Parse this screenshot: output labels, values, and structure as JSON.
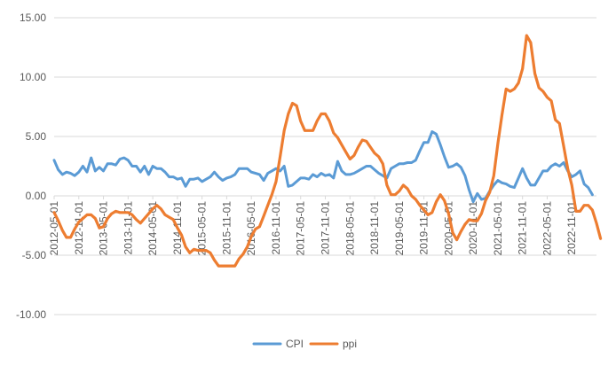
{
  "chart_data": {
    "type": "line",
    "title": "",
    "xlabel": "",
    "ylabel": "",
    "ylim": [
      -10,
      15
    ],
    "y_ticks": [
      "15.00",
      "10.00",
      "5.00",
      "0.00",
      "-5.00",
      "-10.00"
    ],
    "grid": "horizontal",
    "legend_position": "bottom",
    "x_tick_labels": [
      "2012-05-01",
      "2012-11-01",
      "2013-05-01",
      "2013-11-01",
      "2014-05-01",
      "2014-11-01",
      "2015-05-01",
      "2015-11-01",
      "2016-05-01",
      "2016-11-01",
      "2017-05-01",
      "2017-11-01",
      "2018-05-01",
      "2018-11-01",
      "2019-05-01",
      "2019-11-01",
      "2020-05-01",
      "2020-11-01",
      "2021-05-01",
      "2021-11-01",
      "2022-05-01",
      "2022-11-01"
    ],
    "x_start": "2012-05",
    "x_end": "2023-05",
    "series": [
      {
        "name": "CPI",
        "color": "#5b9bd5",
        "values": [
          3.0,
          2.2,
          1.8,
          2.0,
          1.9,
          1.7,
          2.0,
          2.5,
          2.0,
          3.2,
          2.1,
          2.4,
          2.1,
          2.7,
          2.7,
          2.6,
          3.1,
          3.2,
          3.0,
          2.5,
          2.5,
          2.0,
          2.5,
          1.8,
          2.5,
          2.3,
          2.3,
          2.0,
          1.6,
          1.6,
          1.4,
          1.5,
          0.8,
          1.4,
          1.4,
          1.5,
          1.2,
          1.4,
          1.6,
          2.0,
          1.6,
          1.3,
          1.5,
          1.6,
          1.8,
          2.3,
          2.3,
          2.3,
          2.0,
          1.9,
          1.8,
          1.3,
          1.9,
          2.1,
          2.3,
          2.1,
          2.5,
          0.8,
          0.9,
          1.2,
          1.5,
          1.5,
          1.4,
          1.8,
          1.6,
          1.9,
          1.7,
          1.8,
          1.5,
          2.9,
          2.1,
          1.8,
          1.8,
          1.9,
          2.1,
          2.3,
          2.5,
          2.5,
          2.2,
          1.9,
          1.7,
          1.5,
          2.3,
          2.5,
          2.7,
          2.7,
          2.8,
          2.8,
          3.0,
          3.8,
          4.5,
          4.5,
          5.4,
          5.2,
          4.3,
          3.3,
          2.4,
          2.5,
          2.7,
          2.4,
          1.7,
          0.5,
          -0.5,
          0.2,
          -0.3,
          -0.2,
          0.4,
          0.9,
          1.3,
          1.1,
          1.0,
          0.8,
          0.7,
          1.5,
          2.3,
          1.5,
          0.9,
          0.9,
          1.5,
          2.1,
          2.1,
          2.5,
          2.7,
          2.5,
          2.8,
          2.1,
          1.6,
          1.8,
          2.1,
          1.0,
          0.7,
          0.1
        ]
      },
      {
        "name": "ppi",
        "color": "#ed7d31",
        "values": [
          -1.4,
          -2.1,
          -2.9,
          -3.5,
          -3.5,
          -2.8,
          -2.2,
          -1.9,
          -1.6,
          -1.6,
          -1.9,
          -2.7,
          -2.6,
          -1.9,
          -1.5,
          -1.3,
          -1.4,
          -1.4,
          -1.4,
          -1.6,
          -2.0,
          -2.3,
          -1.9,
          -1.5,
          -1.1,
          -0.8,
          -1.1,
          -1.6,
          -1.8,
          -2.0,
          -2.7,
          -3.3,
          -4.3,
          -4.8,
          -4.5,
          -4.6,
          -4.6,
          -4.6,
          -4.8,
          -5.4,
          -5.9,
          -5.9,
          -5.9,
          -5.9,
          -5.9,
          -5.3,
          -4.9,
          -4.3,
          -3.4,
          -2.8,
          -2.6,
          -1.7,
          -0.8,
          0.1,
          1.2,
          3.3,
          5.5,
          6.9,
          7.8,
          7.6,
          6.3,
          5.5,
          5.5,
          5.5,
          6.3,
          6.9,
          6.9,
          6.3,
          5.3,
          4.9,
          4.3,
          3.7,
          3.1,
          3.4,
          4.1,
          4.7,
          4.6,
          4.1,
          3.6,
          3.3,
          2.7,
          0.9,
          0.1,
          0.1,
          0.4,
          0.9,
          0.6,
          0.0,
          -0.3,
          -0.8,
          -1.2,
          -1.6,
          -1.4,
          -0.5,
          0.1,
          -0.4,
          -1.5,
          -3.1,
          -3.7,
          -3.0,
          -2.4,
          -2.0,
          -2.1,
          -2.1,
          -1.5,
          -0.4,
          0.3,
          1.7,
          4.4,
          6.8,
          9.0,
          8.8,
          9.0,
          9.5,
          10.7,
          13.5,
          12.9,
          10.3,
          9.1,
          8.8,
          8.3,
          8.0,
          6.4,
          6.1,
          4.2,
          2.3,
          0.9,
          -1.3,
          -1.3,
          -0.8,
          -0.8,
          -1.2,
          -2.3,
          -3.6
        ]
      }
    ]
  }
}
